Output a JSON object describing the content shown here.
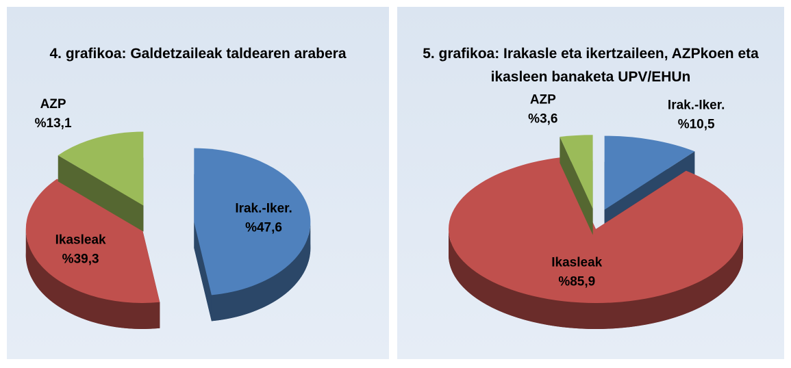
{
  "chart_data": [
    {
      "type": "pie",
      "title": "4. grafikoa: Galdetzaileak taldearen arabera",
      "categories": [
        "Irak.-Iker.",
        "Ikasleak",
        "AZP"
      ],
      "values": [
        47.6,
        39.3,
        13.1
      ],
      "value_labels": [
        "%47,6",
        "%39,3",
        "%13,1"
      ],
      "colors": [
        "#4f81bd",
        "#c0504d",
        "#9bbb59"
      ]
    },
    {
      "type": "pie",
      "title": "5. grafikoa: Irakasle eta ikertzaileen, AZPkoen eta ikasleen banaketa UPV/EHUn",
      "categories": [
        "Irak.-Iker.",
        "Ikasleak",
        "AZP"
      ],
      "values": [
        10.5,
        85.9,
        3.6
      ],
      "value_labels": [
        "%10,5",
        "%85,9",
        "%3,6"
      ],
      "colors": [
        "#4f81bd",
        "#c0504d",
        "#9bbb59"
      ]
    }
  ]
}
